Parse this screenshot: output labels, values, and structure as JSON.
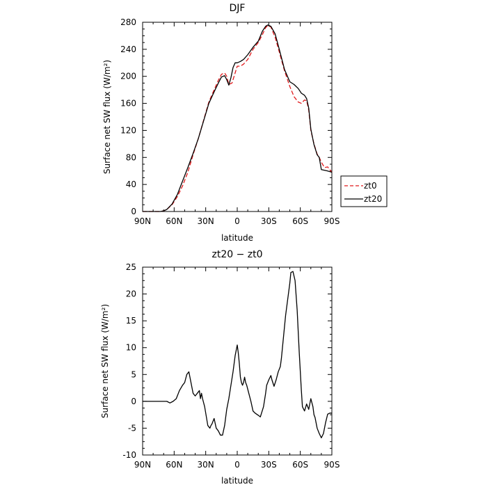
{
  "colors": {
    "zt0": "#e0191b",
    "zt20": "#000000",
    "frame": "#000000"
  },
  "chart_data": [
    {
      "type": "line",
      "title": "DJF",
      "xlabel": "latitude",
      "ylabel": "Surface net SW flux (W/m²)",
      "xlim": [
        90,
        -90
      ],
      "ylim": [
        0,
        280
      ],
      "xtick_labels": [
        "90N",
        "60N",
        "30N",
        "0",
        "30S",
        "60S",
        "90S"
      ],
      "ytick_values": [
        0,
        40,
        80,
        120,
        160,
        200,
        240,
        280
      ],
      "legend_position": "right",
      "grid": false,
      "series": [
        {
          "name": "zt0",
          "style": "dashed",
          "x": [
            90,
            80,
            73,
            70,
            67,
            62,
            57,
            52,
            47,
            42,
            37,
            32,
            27,
            22,
            18,
            15,
            12,
            10,
            8,
            5,
            3,
            1,
            0,
            -3,
            -6,
            -10,
            -15,
            -20,
            -24,
            -27,
            -29,
            -32,
            -36,
            -40,
            -45,
            -50,
            -54,
            -58,
            -61,
            -64,
            -66,
            -68,
            -70,
            -73,
            -76,
            -78,
            -80,
            -83,
            -86,
            -88,
            -90
          ],
          "y": [
            0,
            0,
            0,
            1,
            3,
            10,
            22,
            38,
            58,
            84,
            108,
            135,
            162,
            180,
            194,
            203,
            205,
            200,
            188,
            190,
            200,
            210,
            215,
            215,
            218,
            225,
            240,
            250,
            262,
            272,
            275,
            273,
            258,
            236,
            208,
            185,
            170,
            162,
            160,
            165,
            164,
            150,
            120,
            100,
            85,
            80,
            73,
            65,
            66,
            62,
            58
          ]
        },
        {
          "name": "zt20",
          "style": "solid",
          "x": [
            90,
            80,
            73,
            70,
            67,
            62,
            57,
            52,
            47,
            42,
            37,
            32,
            27,
            22,
            18,
            15,
            12,
            10,
            8,
            6,
            4,
            2,
            0,
            -3,
            -6,
            -10,
            -15,
            -20,
            -24,
            -27,
            -29,
            -32,
            -36,
            -40,
            -45,
            -50,
            -54,
            -58,
            -61,
            -64,
            -66,
            -68,
            -70,
            -73,
            -76,
            -78,
            -80,
            -83,
            -86,
            -88,
            -90
          ],
          "y": [
            0,
            0,
            0,
            1,
            3,
            11,
            25,
            45,
            65,
            86,
            108,
            134,
            160,
            177,
            190,
            199,
            201,
            195,
            187,
            198,
            213,
            220,
            220,
            222,
            225,
            232,
            243,
            252,
            267,
            274,
            276,
            274,
            263,
            240,
            210,
            192,
            188,
            182,
            175,
            172,
            167,
            153,
            122,
            99,
            84,
            80,
            62,
            61,
            60,
            59,
            58
          ]
        }
      ]
    },
    {
      "type": "line",
      "title": "zt20 − zt0",
      "xlabel": "latitude",
      "ylabel": "Surface net SW flux (W/m²)",
      "xlim": [
        90,
        -90
      ],
      "ylim": [
        -10,
        25
      ],
      "xtick_labels": [
        "90N",
        "60N",
        "30N",
        "0",
        "30S",
        "60S",
        "90S"
      ],
      "ytick_values": [
        -10,
        -5,
        0,
        5,
        10,
        15,
        20,
        25
      ],
      "grid": false,
      "series": [
        {
          "style": "solid",
          "x": [
            90,
            70,
            67,
            64,
            61,
            58,
            55,
            52,
            50,
            48,
            46,
            44,
            42,
            40,
            38,
            36,
            35,
            34,
            33,
            31,
            28,
            26,
            25,
            24,
            22,
            20,
            18,
            16,
            14,
            12,
            10,
            8,
            6,
            4,
            2,
            0,
            -1,
            -2,
            -3,
            -4,
            -5,
            -6,
            -7,
            -8,
            -9,
            -11,
            -13,
            -15,
            -17,
            -20,
            -22,
            -25,
            -27,
            -28,
            -30,
            -32,
            -33,
            -35,
            -37,
            -39,
            -41,
            -42,
            -44,
            -46,
            -48,
            -50,
            -51,
            -53,
            -55,
            -57,
            -59,
            -61,
            -62,
            -64,
            -66,
            -68,
            -70,
            -72,
            -73,
            -74,
            -76,
            -78,
            -80,
            -82,
            -84,
            -86,
            -87,
            -88,
            -90
          ],
          "y": [
            0,
            0,
            0,
            -0.3,
            0,
            0.5,
            2,
            3,
            3.5,
            5,
            5.5,
            3.5,
            1.5,
            1,
            1.5,
            2,
            0.5,
            1.5,
            0.5,
            -1,
            -4.5,
            -5,
            -4.5,
            -4.2,
            -3.2,
            -5,
            -5.5,
            -6.3,
            -6.3,
            -4.5,
            -1.5,
            0.5,
            3,
            5.5,
            8.5,
            10.5,
            9,
            7,
            4.5,
            3.5,
            3,
            3.5,
            4.5,
            3.5,
            3,
            1.5,
            0,
            -1.8,
            -2.2,
            -2.6,
            -2.9,
            -1,
            1.5,
            3,
            4,
            4.8,
            4,
            2.8,
            4,
            5.5,
            6.5,
            8,
            12,
            16,
            19,
            22,
            24,
            24.2,
            22.5,
            17,
            9,
            2,
            -1,
            -1.8,
            -0.5,
            -1.5,
            0.5,
            -1,
            -2.5,
            -3,
            -5,
            -6,
            -6.8,
            -6,
            -4,
            -2.4,
            -2.3,
            -2.2,
            -2.2
          ]
        }
      ]
    }
  ]
}
